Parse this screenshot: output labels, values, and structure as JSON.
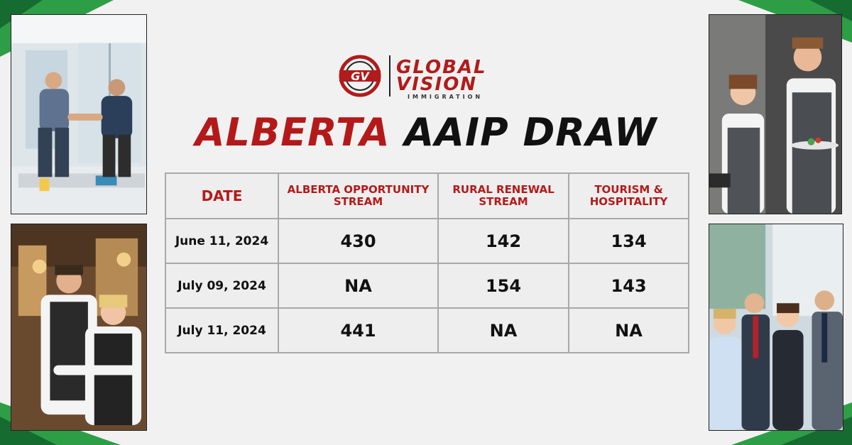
{
  "logo": {
    "monogram": "GV",
    "brand_line1": "GLOBAL",
    "brand_line2": "VISION",
    "tagline": "IMMIGRATION"
  },
  "headline": {
    "part1": "ALBERTA",
    "part2": "AAIP DRAW"
  },
  "colors": {
    "accent_red": "#b41919",
    "corner_green": "#2e9e46",
    "dark_green": "#166b31"
  },
  "table": {
    "headers": [
      "DATE",
      "ALBERTA OPPORTUNITY STREAM",
      "RURAL RENEWAL STREAM",
      "TOURISM & HOSPITALITY"
    ],
    "rows": [
      [
        "June 11, 2024",
        "430",
        "142",
        "134"
      ],
      [
        "July 09, 2024",
        "NA",
        "154",
        "143"
      ],
      [
        "July 11, 2024",
        "441",
        "NA",
        "NA"
      ]
    ]
  },
  "photos": [
    "business-handshake-photo",
    "waitstaff-photo",
    "hospitality-staff-photo",
    "business-team-photo"
  ]
}
